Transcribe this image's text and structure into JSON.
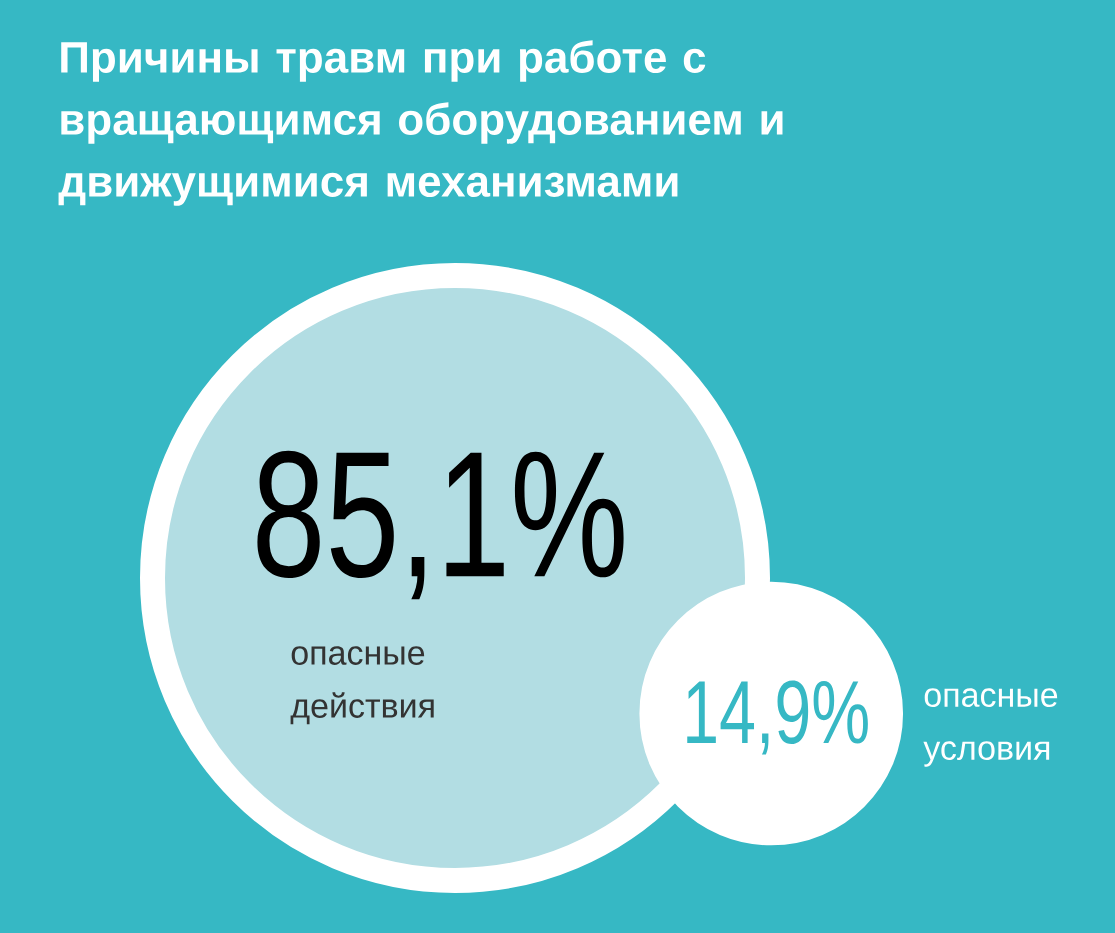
{
  "chart_data": {
    "type": "other",
    "title": "Причины травм при работе с вращающимся оборудованием и движущимися механизмами",
    "categories": [
      "опасные действия",
      "опасные условия"
    ],
    "values": [
      85.1,
      14.9
    ],
    "colors": [
      "#b2dde3",
      "#ffffff"
    ],
    "value_labels": [
      "85,1%",
      "14,9%"
    ]
  }
}
